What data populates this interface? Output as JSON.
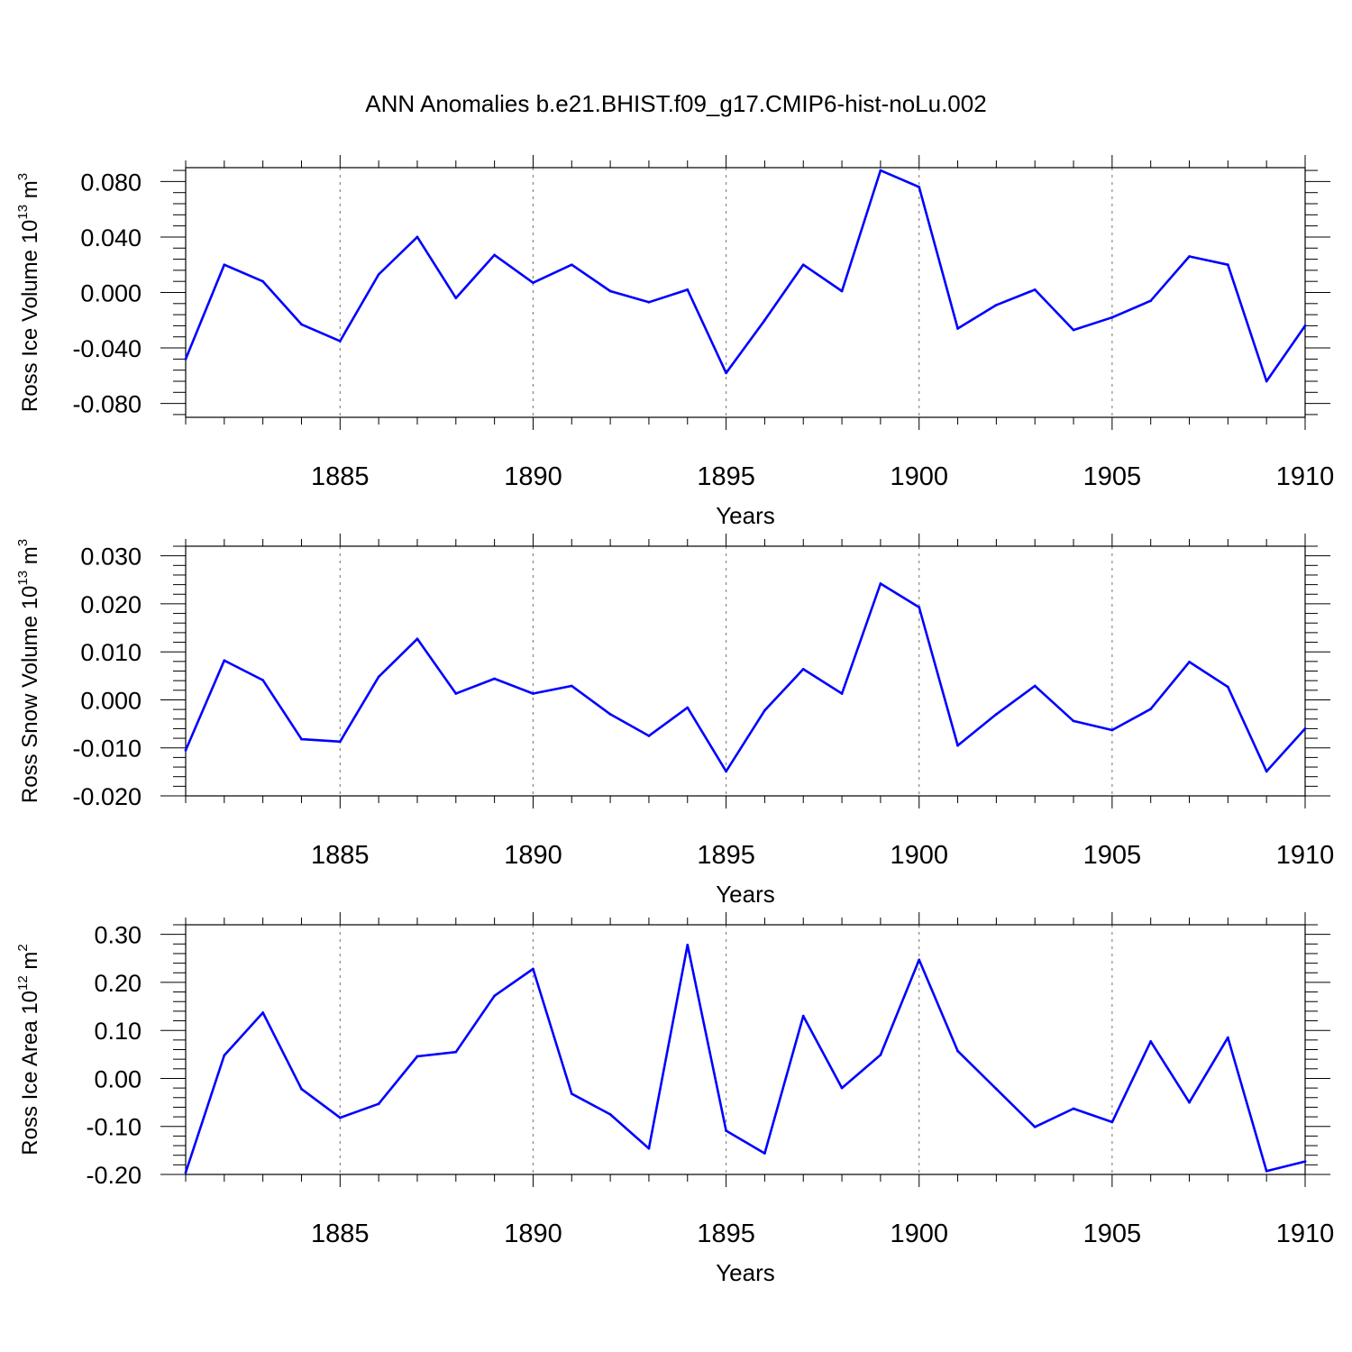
{
  "title": "ANN Anomalies b.e21.BHIST.f09_g17.CMIP6-hist-noLu.002",
  "colors": {
    "line": "#0000ff",
    "axis": "#000000",
    "grid": "#888888"
  },
  "chart_data": [
    {
      "type": "line",
      "ylabel": "Ross Ice Volume 10",
      "ylabel_exp": "13",
      "ylabel_unit": "m",
      "ylabel_unit_exp": "3",
      "xlabel": "Years",
      "xlim": [
        1881,
        1910
      ],
      "ylim": [
        -0.09,
        0.09
      ],
      "xticks": [
        1885,
        1890,
        1895,
        1900,
        1905,
        1910
      ],
      "xtick_labels": [
        "1885",
        "1890",
        "1895",
        "1900",
        "1905",
        "1910"
      ],
      "yticks": [
        -0.08,
        -0.04,
        0.0,
        0.04,
        0.08
      ],
      "ytick_labels": [
        "-0.080",
        "-0.040",
        "0.000",
        "0.040",
        "0.080"
      ],
      "x": [
        1881,
        1882,
        1883,
        1884,
        1885,
        1886,
        1887,
        1888,
        1889,
        1890,
        1891,
        1892,
        1893,
        1894,
        1895,
        1896,
        1897,
        1898,
        1899,
        1900,
        1901,
        1902,
        1903,
        1904,
        1905,
        1906,
        1907,
        1908,
        1909,
        1910
      ],
      "values": [
        -0.048,
        0.02,
        0.008,
        -0.023,
        -0.035,
        0.013,
        0.04,
        -0.004,
        0.027,
        0.007,
        0.02,
        0.001,
        -0.007,
        0.002,
        -0.058,
        -0.02,
        0.02,
        0.001,
        0.088,
        0.076,
        -0.026,
        -0.009,
        0.002,
        -0.027,
        -0.018,
        -0.006,
        0.026,
        0.02,
        -0.064,
        -0.024
      ]
    },
    {
      "type": "line",
      "ylabel": "Ross Snow Volume 10",
      "ylabel_exp": "13",
      "ylabel_unit": "m",
      "ylabel_unit_exp": "3",
      "xlabel": "Years",
      "xlim": [
        1881,
        1910
      ],
      "ylim": [
        -0.02,
        0.032
      ],
      "xticks": [
        1885,
        1890,
        1895,
        1900,
        1905,
        1910
      ],
      "xtick_labels": [
        "1885",
        "1890",
        "1895",
        "1900",
        "1905",
        "1910"
      ],
      "yticks": [
        -0.02,
        -0.01,
        0.0,
        0.01,
        0.02,
        0.03
      ],
      "ytick_labels": [
        "-0.020",
        "-0.010",
        "0.000",
        "0.010",
        "0.020",
        "0.030"
      ],
      "x": [
        1881,
        1882,
        1883,
        1884,
        1885,
        1886,
        1887,
        1888,
        1889,
        1890,
        1891,
        1892,
        1893,
        1894,
        1895,
        1896,
        1897,
        1898,
        1899,
        1900,
        1901,
        1902,
        1903,
        1904,
        1905,
        1906,
        1907,
        1908,
        1909,
        1910
      ],
      "values": [
        -0.0105,
        0.0082,
        0.0041,
        -0.0082,
        -0.0087,
        0.0048,
        0.0127,
        0.0013,
        0.0044,
        0.0013,
        0.0029,
        -0.003,
        -0.0075,
        -0.0016,
        -0.0149,
        -0.0022,
        0.0064,
        0.0013,
        0.0242,
        0.0193,
        -0.0095,
        -0.003,
        0.0029,
        -0.0044,
        -0.0063,
        -0.0019,
        0.0079,
        0.0027,
        -0.0149,
        -0.006
      ]
    },
    {
      "type": "line",
      "ylabel": "Ross Ice Area 10",
      "ylabel_exp": "12",
      "ylabel_unit": "m",
      "ylabel_unit_exp": "2",
      "xlabel": "Years",
      "xlim": [
        1881,
        1910
      ],
      "ylim": [
        -0.2,
        0.32
      ],
      "xticks": [
        1885,
        1890,
        1895,
        1900,
        1905,
        1910
      ],
      "xtick_labels": [
        "1885",
        "1890",
        "1895",
        "1900",
        "1905",
        "1910"
      ],
      "yticks": [
        -0.2,
        -0.1,
        0.0,
        0.1,
        0.2,
        0.3
      ],
      "ytick_labels": [
        "-0.20",
        "-0.10",
        "0.00",
        "0.10",
        "0.20",
        "0.30"
      ],
      "x": [
        1881,
        1882,
        1883,
        1884,
        1885,
        1886,
        1887,
        1888,
        1889,
        1890,
        1891,
        1892,
        1893,
        1894,
        1895,
        1896,
        1897,
        1898,
        1899,
        1900,
        1901,
        1902,
        1903,
        1904,
        1905,
        1906,
        1907,
        1908,
        1909,
        1910
      ],
      "values": [
        -0.196,
        0.048,
        0.137,
        -0.022,
        -0.082,
        -0.053,
        0.046,
        0.055,
        0.172,
        0.228,
        -0.032,
        -0.075,
        -0.146,
        0.278,
        -0.109,
        -0.156,
        0.13,
        -0.02,
        0.049,
        0.247,
        0.057,
        -0.022,
        -0.101,
        -0.063,
        -0.091,
        0.077,
        -0.05,
        0.085,
        -0.193,
        -0.173
      ]
    }
  ]
}
